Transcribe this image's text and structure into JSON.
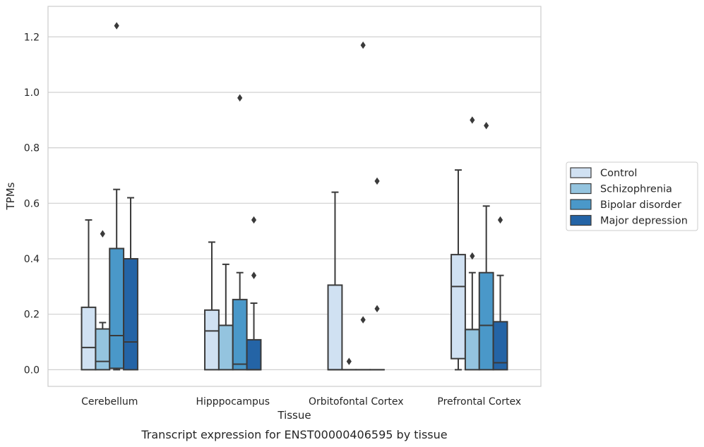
{
  "chart_data": {
    "type": "box",
    "caption": "Transcript expression for ENST00000406595 by tissue",
    "xlabel": "Tissue",
    "ylabel": "TPMs",
    "ylim": [
      -0.06,
      1.31
    ],
    "yticks": [
      "0.0",
      "0.2",
      "0.4",
      "0.6",
      "0.8",
      "1.0",
      "1.2"
    ],
    "grid": true,
    "legend_position": "right",
    "categories": [
      "Cerebellum",
      "Hipppocampus",
      "Orbitofontal Cortex",
      "Prefrontal Cortex"
    ],
    "series": [
      {
        "name": "Control",
        "color": "#d0e1f2",
        "boxes": [
          {
            "q1": 0.0,
            "median": 0.08,
            "q3": 0.225,
            "whisker_low": 0.0,
            "whisker_high": 0.54,
            "outliers": []
          },
          {
            "q1": 0.0,
            "median": 0.14,
            "q3": 0.215,
            "whisker_low": 0.0,
            "whisker_high": 0.46,
            "outliers": []
          },
          {
            "q1": 0.0,
            "median": 0.0,
            "q3": 0.305,
            "whisker_low": 0.0,
            "whisker_high": 0.64,
            "outliers": []
          },
          {
            "q1": 0.04,
            "median": 0.3,
            "q3": 0.415,
            "whisker_low": 0.0,
            "whisker_high": 0.72,
            "outliers": []
          }
        ]
      },
      {
        "name": "Schizophrenia",
        "color": "#94c4df",
        "boxes": [
          {
            "q1": 0.0,
            "median": 0.03,
            "q3": 0.147,
            "whisker_low": 0.0,
            "whisker_high": 0.17,
            "outliers": [
              0.49
            ]
          },
          {
            "q1": 0.0,
            "median": 0.16,
            "q3": 0.16,
            "whisker_low": 0.0,
            "whisker_high": 0.38,
            "outliers": []
          },
          {
            "q1": 0.0,
            "median": 0.0,
            "q3": 0.0,
            "whisker_low": 0.0,
            "whisker_high": 0.0,
            "outliers": [
              0.03
            ]
          },
          {
            "q1": 0.0,
            "median": 0.145,
            "q3": 0.145,
            "whisker_low": 0.0,
            "whisker_high": 0.35,
            "outliers": [
              0.41,
              0.9
            ]
          }
        ]
      },
      {
        "name": "Bipolar disorder",
        "color": "#4a98c9",
        "boxes": [
          {
            "q1": 0.005,
            "median": 0.123,
            "q3": 0.437,
            "whisker_low": 0.0,
            "whisker_high": 0.65,
            "outliers": [
              1.24
            ]
          },
          {
            "q1": 0.0,
            "median": 0.02,
            "q3": 0.253,
            "whisker_low": 0.0,
            "whisker_high": 0.35,
            "outliers": [
              0.98
            ]
          },
          {
            "q1": 0.0,
            "median": 0.0,
            "q3": 0.0,
            "whisker_low": 0.0,
            "whisker_high": 0.0,
            "outliers": [
              0.18,
              1.17
            ]
          },
          {
            "q1": 0.0,
            "median": 0.16,
            "q3": 0.35,
            "whisker_low": 0.0,
            "whisker_high": 0.59,
            "outliers": [
              0.88
            ]
          }
        ]
      },
      {
        "name": "Major depression",
        "color": "#2464a6",
        "boxes": [
          {
            "q1": 0.0,
            "median": 0.1,
            "q3": 0.4,
            "whisker_low": 0.0,
            "whisker_high": 0.62,
            "outliers": []
          },
          {
            "q1": 0.0,
            "median": 0.0,
            "q3": 0.108,
            "whisker_low": 0.0,
            "whisker_high": 0.24,
            "outliers": [
              0.34,
              0.54
            ]
          },
          {
            "q1": 0.0,
            "median": 0.0,
            "q3": 0.0,
            "whisker_low": 0.0,
            "whisker_high": 0.0,
            "outliers": [
              0.22,
              0.68
            ]
          },
          {
            "q1": 0.0,
            "median": 0.025,
            "q3": 0.173,
            "whisker_low": 0.0,
            "whisker_high": 0.34,
            "outliers": [
              0.54
            ]
          }
        ]
      }
    ]
  }
}
